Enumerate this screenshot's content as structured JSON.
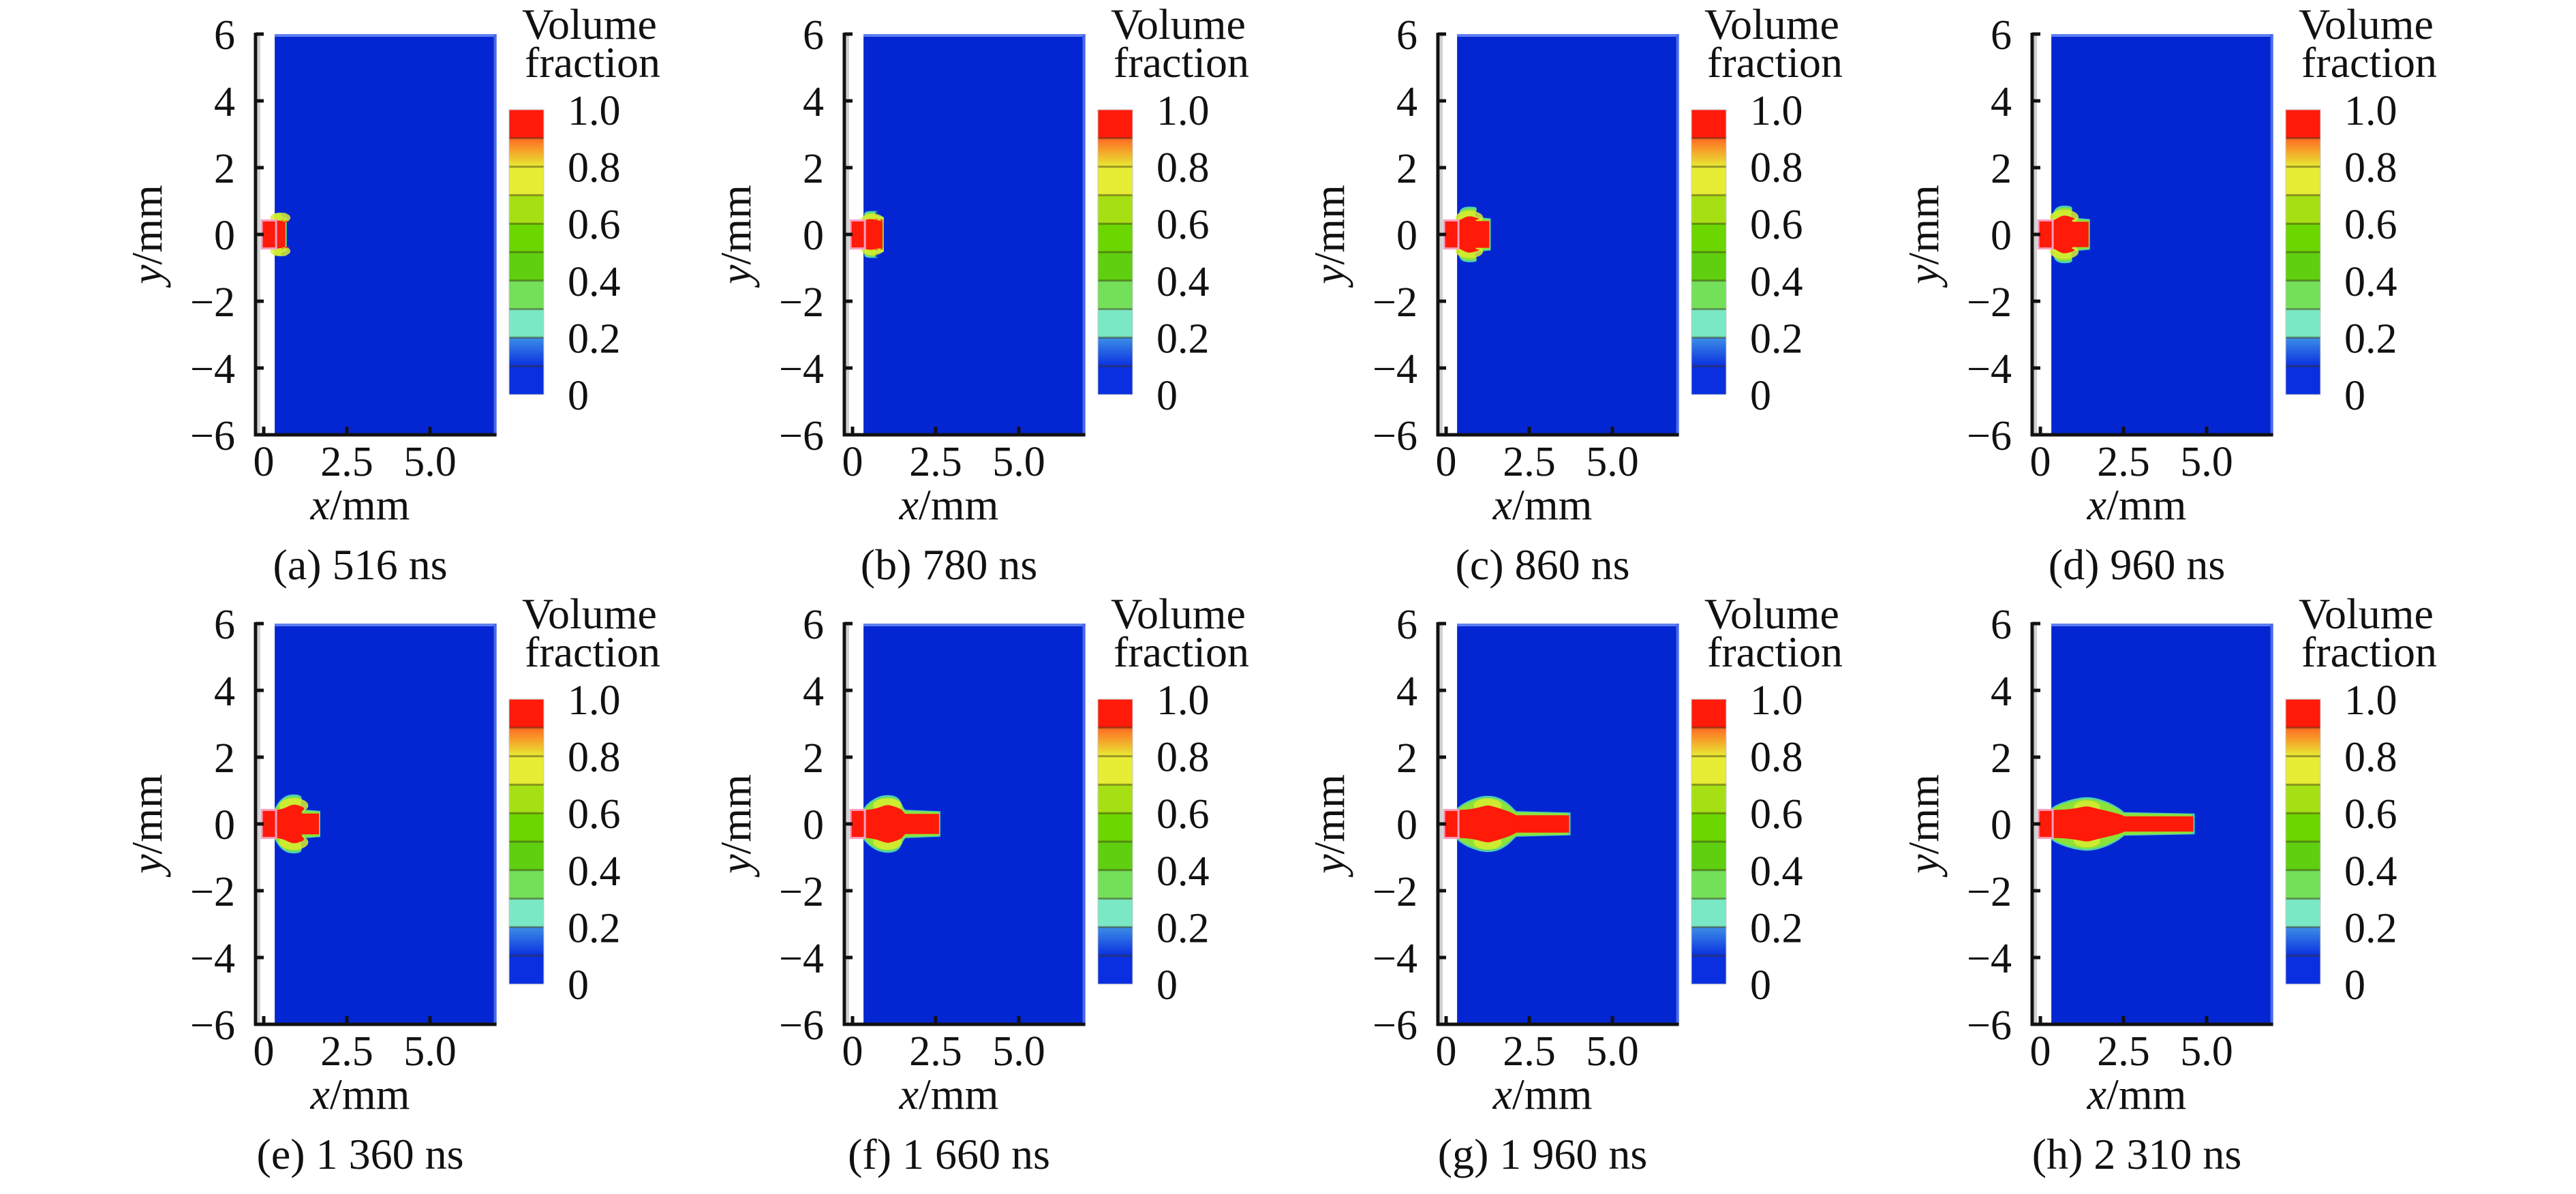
{
  "figure": {
    "colormap": {
      "title_line1": "Volume",
      "title_line2": "fraction",
      "tick_labels": [
        "1.0",
        "0.8",
        "0.6",
        "0.4",
        "0.2",
        "0"
      ],
      "tick_values": [
        1.0,
        0.8,
        0.6,
        0.4,
        0.2,
        0
      ],
      "band_colors_top_to_bottom": [
        "#ff1a0a",
        "#ff6a22",
        "#e8ec34",
        "#a6e014",
        "#6cd600",
        "#5fcf10",
        "#74e05a",
        "#7ae8c4",
        "#3c8ee6",
        "#0a2fe0"
      ],
      "background_color": "#0426d2",
      "jet_core_color": "#ff1a0a",
      "interface_color": "#8de23a",
      "nozzle_color": "#ff1a0a"
    }
  },
  "chart_data": [
    {
      "type": "heatmap",
      "panel": "a",
      "caption": "(a) 516 ns",
      "time_ns": 516,
      "xlabel_var": "x",
      "xlabel_unit": "/mm",
      "ylabel_var": "y",
      "ylabel_unit": "/mm",
      "xticks": [
        0,
        2.5,
        5.0
      ],
      "xtick_labels": [
        "0",
        "2.5",
        "5.0"
      ],
      "yticks": [
        6,
        4,
        2,
        0,
        -2,
        -4,
        -6
      ],
      "ytick_labels": [
        "6",
        "4",
        "2",
        "0",
        "−2",
        "−4",
        "−6"
      ],
      "xlim": [
        -0.25,
        7.0
      ],
      "ylim": [
        -6,
        6
      ],
      "domain_x": [
        0.33,
        7.0
      ],
      "nozzle": {
        "x": [
          -0.06,
          0.33
        ],
        "half_width": 0.42
      },
      "jet": {
        "tip_x": 0.65,
        "tip_half_width": 0.42,
        "vortex_x": 0.5,
        "vortex_y": 0.5,
        "vortex_extent": 0.55
      }
    },
    {
      "type": "heatmap",
      "panel": "b",
      "caption": "(b) 780 ns",
      "time_ns": 780,
      "xlabel_var": "x",
      "xlabel_unit": "/mm",
      "ylabel_var": "y",
      "ylabel_unit": "/mm",
      "xticks": [
        0,
        2.5,
        5.0
      ],
      "xtick_labels": [
        "0",
        "2.5",
        "5.0"
      ],
      "yticks": [
        6,
        4,
        2,
        0,
        -2,
        -4,
        -6
      ],
      "ytick_labels": [
        "6",
        "4",
        "2",
        "0",
        "−2",
        "−4",
        "−6"
      ],
      "xlim": [
        -0.25,
        7.0
      ],
      "ylim": [
        -6,
        6
      ],
      "domain_x": [
        0.33,
        7.0
      ],
      "nozzle": {
        "x": [
          -0.06,
          0.33
        ],
        "half_width": 0.42
      },
      "jet": {
        "tip_x": 0.9,
        "tip_half_width": 0.45,
        "vortex_x": 0.6,
        "vortex_y": 0.45,
        "vortex_extent": 0.62
      }
    },
    {
      "type": "heatmap",
      "panel": "c",
      "caption": "(c) 860 ns",
      "time_ns": 860,
      "xlabel_var": "x",
      "xlabel_unit": "/mm",
      "ylabel_var": "y",
      "ylabel_unit": "/mm",
      "xticks": [
        0,
        2.5,
        5.0
      ],
      "xtick_labels": [
        "0",
        "2.5",
        "5.0"
      ],
      "yticks": [
        6,
        4,
        2,
        0,
        -2,
        -4,
        -6
      ],
      "ytick_labels": [
        "6",
        "4",
        "2",
        "0",
        "−2",
        "−4",
        "−6"
      ],
      "xlim": [
        -0.25,
        7.0
      ],
      "ylim": [
        -6,
        6
      ],
      "domain_x": [
        0.33,
        7.0
      ],
      "nozzle": {
        "x": [
          -0.06,
          0.33
        ],
        "half_width": 0.42
      },
      "jet": {
        "tip_x": 1.3,
        "tip_half_width": 0.4,
        "vortex_x": 0.7,
        "vortex_y": 0.5,
        "vortex_extent": 0.75
      }
    },
    {
      "type": "heatmap",
      "panel": "d",
      "caption": "(d) 960 ns",
      "time_ns": 960,
      "xlabel_var": "x",
      "xlabel_unit": "/mm",
      "ylabel_var": "y",
      "ylabel_unit": "/mm",
      "xticks": [
        0,
        2.5,
        5.0
      ],
      "xtick_labels": [
        "0",
        "2.5",
        "5.0"
      ],
      "yticks": [
        6,
        4,
        2,
        0,
        -2,
        -4,
        -6
      ],
      "ytick_labels": [
        "6",
        "4",
        "2",
        "0",
        "−2",
        "−4",
        "−6"
      ],
      "xlim": [
        -0.25,
        7.0
      ],
      "ylim": [
        -6,
        6
      ],
      "domain_x": [
        0.33,
        7.0
      ],
      "nozzle": {
        "x": [
          -0.06,
          0.33
        ],
        "half_width": 0.42
      },
      "jet": {
        "tip_x": 1.45,
        "tip_half_width": 0.38,
        "vortex_x": 0.72,
        "vortex_y": 0.52,
        "vortex_extent": 0.78
      }
    },
    {
      "type": "heatmap",
      "panel": "e",
      "caption": "(e) 1 360 ns",
      "time_ns": 1360,
      "xlabel_var": "x",
      "xlabel_unit": "/mm",
      "ylabel_var": "y",
      "ylabel_unit": "/mm",
      "xticks": [
        0,
        2.5,
        5.0
      ],
      "xtick_labels": [
        "0",
        "2.5",
        "5.0"
      ],
      "yticks": [
        6,
        4,
        2,
        0,
        -2,
        -4,
        -6
      ],
      "ytick_labels": [
        "6",
        "4",
        "2",
        "0",
        "−2",
        "−4",
        "−6"
      ],
      "xlim": [
        -0.25,
        7.0
      ],
      "ylim": [
        -6,
        6
      ],
      "domain_x": [
        0.33,
        7.0
      ],
      "nozzle": {
        "x": [
          -0.06,
          0.33
        ],
        "half_width": 0.42
      },
      "jet": {
        "tip_x": 1.66,
        "tip_half_width": 0.31,
        "vortex_x": 0.9,
        "vortex_y": 0.55,
        "vortex_extent": 0.8
      }
    },
    {
      "type": "heatmap",
      "panel": "f",
      "caption": "(f) 1 660 ns",
      "time_ns": 1660,
      "xlabel_var": "x",
      "xlabel_unit": "/mm",
      "ylabel_var": "y",
      "ylabel_unit": "/mm",
      "xticks": [
        0,
        2.5,
        5.0
      ],
      "xtick_labels": [
        "0",
        "2.5",
        "5.0"
      ],
      "yticks": [
        6,
        4,
        2,
        0,
        -2,
        -4,
        -6
      ],
      "ytick_labels": [
        "6",
        "4",
        "2",
        "0",
        "−2",
        "−4",
        "−6"
      ],
      "xlim": [
        -0.25,
        7.0
      ],
      "ylim": [
        -6,
        6
      ],
      "domain_x": [
        0.33,
        7.0
      ],
      "nozzle": {
        "x": [
          -0.06,
          0.33
        ],
        "half_width": 0.42
      },
      "jet": {
        "tip_x": 2.6,
        "tip_half_width": 0.3,
        "vortex_x": 1.05,
        "vortex_y": 0.55,
        "vortex_extent": 0.78
      }
    },
    {
      "type": "heatmap",
      "panel": "g",
      "caption": "(g) 1 960 ns",
      "time_ns": 1960,
      "xlabel_var": "x",
      "xlabel_unit": "/mm",
      "ylabel_var": "y",
      "ylabel_unit": "/mm",
      "xticks": [
        0,
        2.5,
        5.0
      ],
      "xtick_labels": [
        "0",
        "2.5",
        "5.0"
      ],
      "yticks": [
        6,
        4,
        2,
        0,
        -2,
        -4,
        -6
      ],
      "ytick_labels": [
        "6",
        "4",
        "2",
        "0",
        "−2",
        "−4",
        "−6"
      ],
      "xlim": [
        -0.25,
        7.0
      ],
      "ylim": [
        -6,
        6
      ],
      "domain_x": [
        0.33,
        7.0
      ],
      "nozzle": {
        "x": [
          -0.06,
          0.33
        ],
        "half_width": 0.42
      },
      "jet": {
        "tip_x": 3.7,
        "tip_half_width": 0.26,
        "vortex_x": 1.25,
        "vortex_y": 0.55,
        "vortex_extent": 0.76
      }
    },
    {
      "type": "heatmap",
      "panel": "h",
      "caption": "(h) 2 310 ns",
      "time_ns": 2310,
      "xlabel_var": "x",
      "xlabel_unit": "/mm",
      "ylabel_var": "y",
      "ylabel_unit": "/mm",
      "xticks": [
        0,
        2.5,
        5.0
      ],
      "xtick_labels": [
        "0",
        "2.5",
        "5.0"
      ],
      "yticks": [
        6,
        4,
        2,
        0,
        -2,
        -4,
        -6
      ],
      "ytick_labels": [
        "6",
        "4",
        "2",
        "0",
        "−2",
        "−4",
        "−6"
      ],
      "xlim": [
        -0.25,
        7.0
      ],
      "ylim": [
        -6,
        6
      ],
      "domain_x": [
        0.33,
        7.0
      ],
      "nozzle": {
        "x": [
          -0.06,
          0.33
        ],
        "half_width": 0.42
      },
      "jet": {
        "tip_x": 4.6,
        "tip_half_width": 0.23,
        "vortex_x": 1.4,
        "vortex_y": 0.5,
        "vortex_extent": 0.72
      }
    }
  ]
}
